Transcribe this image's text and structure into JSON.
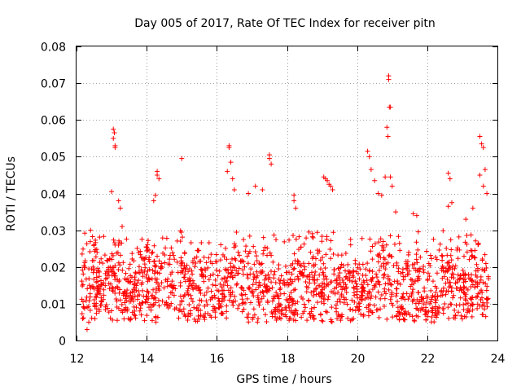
{
  "chart_data": {
    "type": "scatter",
    "title": "Day 005 of 2017, Rate Of TEC Index for receiver pitn",
    "xlabel": "GPS time / hours",
    "ylabel": "ROTI / TECUs",
    "xlim": [
      12,
      24
    ],
    "ylim": [
      0,
      0.08
    ],
    "xticks": [
      "12",
      "14",
      "16",
      "18",
      "20",
      "22",
      "24"
    ],
    "yticks": [
      "0",
      "0.01",
      "0.02",
      "0.03",
      "0.04",
      "0.05",
      "0.06",
      "0.07",
      "0.08"
    ],
    "grid": true,
    "marker": "+",
    "color": "#ff0000",
    "baseline_range": [
      0.005,
      0.03
    ],
    "series": [
      {
        "name": "ROTI",
        "x": [
          12.3,
          12.35,
          12.4,
          13.05,
          13.05,
          13.08,
          13.1,
          13.1,
          13.0,
          13.2,
          13.25,
          13.3,
          14.3,
          14.3,
          14.35,
          14.2,
          14.25,
          15.0,
          16.35,
          16.35,
          16.4,
          16.3,
          16.45,
          16.5,
          16.9,
          17.1,
          17.3,
          17.5,
          17.5,
          17.55,
          18.2,
          18.2,
          18.25,
          19.05,
          19.1,
          19.15,
          19.2,
          19.25,
          19.3,
          20.3,
          20.35,
          20.4,
          20.5,
          20.6,
          20.7,
          20.8,
          20.85,
          20.88,
          20.9,
          20.9,
          20.92,
          20.95,
          20.95,
          21.0,
          21.1,
          21.6,
          21.7,
          22.6,
          22.65,
          22.7,
          22.6,
          23.1,
          23.3,
          23.5,
          23.55,
          23.6,
          23.65,
          23.6,
          23.7,
          23.5
        ],
        "y": [
          0.003,
          0.005,
          0.03,
          0.0575,
          0.055,
          0.0565,
          0.053,
          0.0525,
          0.0405,
          0.038,
          0.036,
          0.031,
          0.046,
          0.045,
          0.044,
          0.038,
          0.0395,
          0.0495,
          0.053,
          0.0525,
          0.0485,
          0.046,
          0.044,
          0.041,
          0.04,
          0.042,
          0.041,
          0.0505,
          0.0495,
          0.048,
          0.0395,
          0.038,
          0.036,
          0.0445,
          0.044,
          0.0435,
          0.0425,
          0.042,
          0.041,
          0.0515,
          0.05,
          0.0465,
          0.0435,
          0.04,
          0.0395,
          0.0445,
          0.058,
          0.0555,
          0.072,
          0.071,
          0.0635,
          0.0635,
          0.0445,
          0.042,
          0.035,
          0.0345,
          0.034,
          0.0455,
          0.044,
          0.0375,
          0.0365,
          0.033,
          0.036,
          0.0555,
          0.0535,
          0.0525,
          0.0465,
          0.042,
          0.04,
          0.045
        ]
      }
    ]
  }
}
